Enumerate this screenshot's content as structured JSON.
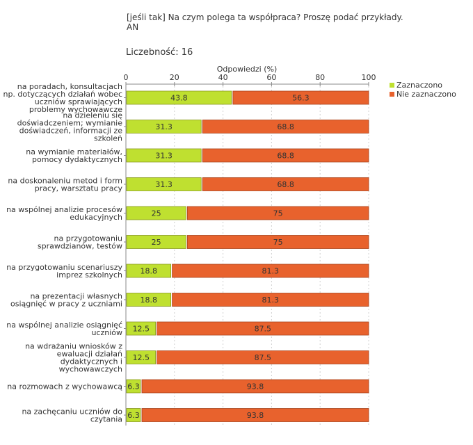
{
  "question": "[jeśli tak] Na czym polega ta współpraca? Proszę podać przykłady.\nAN",
  "count_label": "Liczebność: 16",
  "colors": {
    "selected": "#bfe030",
    "not_selected": "#e8622d"
  },
  "chart_data": {
    "type": "bar",
    "orientation": "horizontal",
    "stacked": true,
    "title": "[jeśli tak] Na czym polega ta współpraca? Proszę podać przykłady. AN",
    "xlabel": "Odpowiedzi (%)",
    "xlim": [
      0,
      100
    ],
    "xticks": [
      0,
      20,
      40,
      60,
      80,
      100
    ],
    "legend_position": "top-right",
    "categories": [
      "na poradach, konsultacjach np. dotyczących działań wobec uczniów sprawiających problemy wychowawcze",
      "na dzieleniu się doświadczeniem; wymianie doświadczeń, informacji ze szkoleń",
      "na wymianie materiałów, pomocy dydaktycznych",
      "na doskonaleniu metod i form pracy, warsztatu pracy",
      "na wspólnej analizie procesów edukacyjnych",
      "na przygotowaniu sprawdzianów, testów",
      "na przygotowaniu scenariuszy imprez szkolnych",
      "na prezentacji własnych osiągnięć w pracy z uczniami",
      "na wspólnej analizie osiągnięć uczniów",
      "na wdrażaniu wniosków z ewaluacji działań dydaktycznych i wychowawczych",
      "na rozmowach z wychowawcą",
      "na zachęcaniu uczniów do czytania"
    ],
    "series": [
      {
        "name": "Zaznaczono",
        "values": [
          43.8,
          31.3,
          31.3,
          31.3,
          25,
          25,
          18.8,
          18.8,
          12.5,
          12.5,
          6.3,
          6.3
        ]
      },
      {
        "name": "Nie zaznaczono",
        "values": [
          56.3,
          68.8,
          68.8,
          68.8,
          75,
          75,
          81.3,
          81.3,
          87.5,
          87.5,
          93.8,
          93.8
        ]
      }
    ]
  }
}
